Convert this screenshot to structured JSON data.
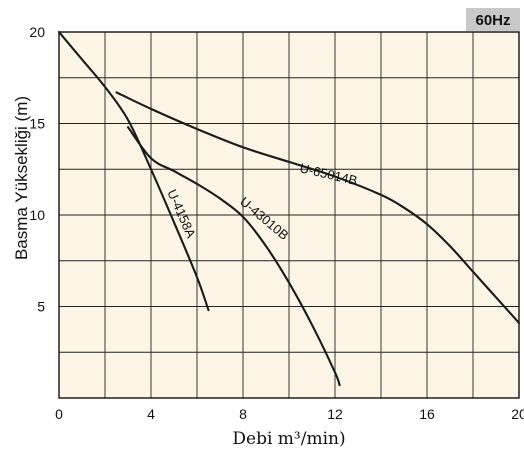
{
  "badge": {
    "text": "60Hz",
    "fill": "#c8c8c8"
  },
  "chart_data": {
    "type": "line",
    "xlabel": "Debi m³/min)",
    "ylabel": "Basma Yüksekliği (m)",
    "xlim": [
      0,
      20
    ],
    "ylim": [
      0,
      20
    ],
    "x_ticks": [
      "0",
      "4",
      "8",
      "12",
      "16",
      "20"
    ],
    "y_ticks": [
      "5",
      "10",
      "15",
      "20"
    ],
    "grid": true,
    "plot_background": "#fcf4e4",
    "line_color": "#1a1a1a",
    "series": [
      {
        "name": "U-65014B",
        "x": [
          2.5,
          4,
          6,
          8,
          10,
          12,
          14,
          15,
          16,
          17,
          18,
          19,
          20
        ],
        "y": [
          16.7,
          15.8,
          14.7,
          13.7,
          12.9,
          12.1,
          11.1,
          10.4,
          9.5,
          8.3,
          6.9,
          5.5,
          4.1
        ]
      },
      {
        "name": "U-43010B",
        "x": [
          3,
          4,
          5,
          6,
          7,
          8,
          9,
          10,
          11,
          12,
          12.2
        ],
        "y": [
          14.8,
          13.1,
          12.4,
          11.7,
          10.9,
          9.9,
          8.3,
          6.3,
          4.0,
          1.4,
          0.7
        ]
      },
      {
        "name": "U-4158A",
        "x": [
          0,
          1,
          2,
          3,
          4,
          5,
          6,
          6.5
        ],
        "y": [
          20,
          18.5,
          17.0,
          15.2,
          12.5,
          9.6,
          6.6,
          4.8
        ]
      }
    ]
  }
}
